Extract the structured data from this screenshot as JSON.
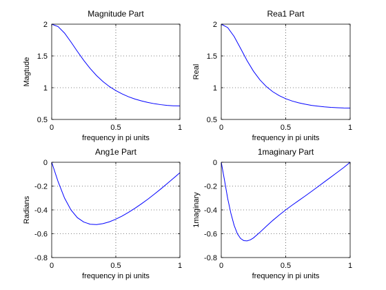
{
  "chart_data": [
    {
      "type": "line",
      "title": "Magnitude Part",
      "xlabel": "frequency in pi units",
      "ylabel": "Magtude",
      "xlim": [
        0,
        1
      ],
      "ylim": [
        0.5,
        2
      ],
      "xticks": [
        "0",
        "0.5",
        "1"
      ],
      "yticks": [
        "0.5",
        "1",
        "1.5",
        "2"
      ],
      "xtick_values": [
        0,
        0.5,
        1
      ],
      "ytick_values": [
        0.5,
        1,
        1.5,
        2
      ],
      "grid": true,
      "line_color": "#0000ff",
      "series": [
        {
          "x": [
            0,
            0.05,
            0.1,
            0.15,
            0.2,
            0.25,
            0.3,
            0.35,
            0.4,
            0.45,
            0.5,
            0.55,
            0.6,
            0.65,
            0.7,
            0.75,
            0.8,
            0.85,
            0.9,
            0.95,
            1
          ],
          "values": [
            2.0,
            1.962,
            1.86,
            1.72,
            1.572,
            1.43,
            1.302,
            1.19,
            1.096,
            1.018,
            0.954,
            0.901,
            0.857,
            0.821,
            0.792,
            0.768,
            0.748,
            0.733,
            0.722,
            0.715,
            0.713
          ]
        }
      ]
    },
    {
      "type": "line",
      "title": "Rea1 Part",
      "xlabel": "frequency in pi units",
      "ylabel": "Real",
      "xlim": [
        0,
        1
      ],
      "ylim": [
        0.5,
        2
      ],
      "xticks": [
        "0",
        "0.5",
        "1"
      ],
      "yticks": [
        "0.5",
        "1",
        "1.5",
        "2"
      ],
      "xtick_values": [
        0,
        0.5,
        1
      ],
      "ytick_values": [
        0.5,
        1,
        1.5,
        2
      ],
      "grid": true,
      "line_color": "#0000ff",
      "series": [
        {
          "x": [
            0,
            0.05,
            0.1,
            0.15,
            0.2,
            0.25,
            0.3,
            0.35,
            0.4,
            0.45,
            0.5,
            0.55,
            0.6,
            0.65,
            0.7,
            0.75,
            0.8,
            0.85,
            0.9,
            0.95,
            1
          ],
          "values": [
            2.0,
            1.946,
            1.806,
            1.618,
            1.427,
            1.259,
            1.123,
            1.017,
            0.936,
            0.874,
            0.827,
            0.79,
            0.762,
            0.74,
            0.722,
            0.709,
            0.698,
            0.69,
            0.685,
            0.681,
            0.68
          ]
        }
      ]
    },
    {
      "type": "line",
      "title": "Ang1e Part",
      "xlabel": "frequency in pi units",
      "ylabel": "Radians",
      "xlim": [
        0,
        1
      ],
      "ylim": [
        -0.8,
        0
      ],
      "xticks": [
        "0",
        "0.5",
        "1"
      ],
      "yticks": [
        "-0.8",
        "-0.6",
        "-0.4",
        "-0.2",
        "0"
      ],
      "xtick_values": [
        0,
        0.5,
        1
      ],
      "ytick_values": [
        -0.8,
        -0.6,
        -0.4,
        -0.2,
        0
      ],
      "grid": true,
      "line_color": "#0000ff",
      "series": [
        {
          "x": [
            0,
            0.05,
            0.1,
            0.15,
            0.2,
            0.25,
            0.3,
            0.35,
            0.4,
            0.45,
            0.5,
            0.55,
            0.6,
            0.65,
            0.7,
            0.75,
            0.8,
            0.85,
            0.9,
            0.95,
            1
          ],
          "values": [
            0,
            -0.163,
            -0.3,
            -0.4,
            -0.465,
            -0.502,
            -0.52,
            -0.523,
            -0.515,
            -0.5,
            -0.478,
            -0.451,
            -0.42,
            -0.386,
            -0.349,
            -0.31,
            -0.268,
            -0.225,
            -0.18,
            -0.134,
            -0.088
          ]
        }
      ]
    },
    {
      "type": "line",
      "title": "1maginary Part",
      "xlabel": "frequency in pi units",
      "ylabel": "1maginary",
      "xlim": [
        0,
        1
      ],
      "ylim": [
        -0.8,
        0
      ],
      "xticks": [
        "0",
        "0.5",
        "1"
      ],
      "yticks": [
        "-0.8",
        "-0.6",
        "-0.4",
        "-0.2",
        "0"
      ],
      "xtick_values": [
        0,
        0.5,
        1
      ],
      "ytick_values": [
        -0.8,
        -0.6,
        -0.4,
        -0.2,
        0
      ],
      "grid": true,
      "line_color": "#0000ff",
      "series": [
        {
          "x": [
            0,
            0.025,
            0.05,
            0.075,
            0.1,
            0.125,
            0.15,
            0.175,
            0.2,
            0.225,
            0.25,
            0.3,
            0.35,
            0.4,
            0.45,
            0.5,
            0.55,
            0.6,
            0.65,
            0.7,
            0.75,
            0.8,
            0.85,
            0.9,
            0.95,
            1
          ],
          "values": [
            0,
            -0.15,
            -0.305,
            -0.43,
            -0.53,
            -0.6,
            -0.64,
            -0.658,
            -0.66,
            -0.652,
            -0.635,
            -0.588,
            -0.537,
            -0.488,
            -0.443,
            -0.4,
            -0.36,
            -0.322,
            -0.284,
            -0.245,
            -0.205,
            -0.165,
            -0.125,
            -0.085,
            -0.044,
            0
          ]
        }
      ]
    }
  ]
}
